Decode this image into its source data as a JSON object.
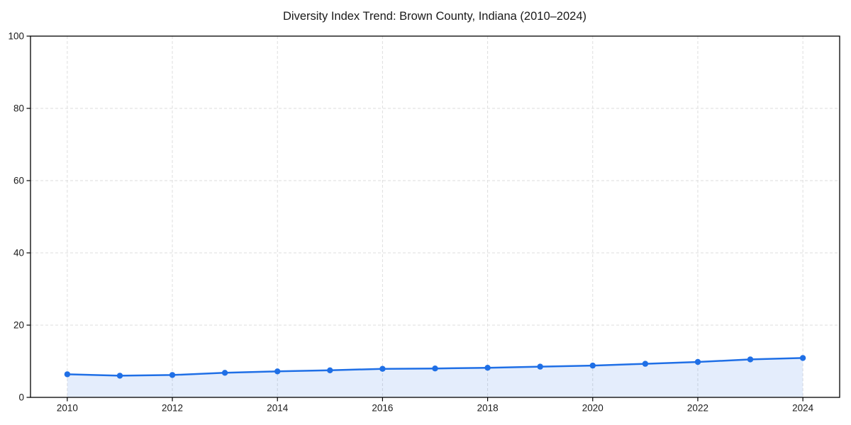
{
  "chart_data": {
    "type": "line",
    "title": "Diversity Index Trend: Brown County, Indiana (2010–2024)",
    "x": [
      2010,
      2011,
      2012,
      2013,
      2014,
      2015,
      2016,
      2017,
      2018,
      2019,
      2020,
      2021,
      2022,
      2023,
      2024
    ],
    "series": [
      {
        "name": "Diversity Index",
        "values": [
          6.4,
          6.0,
          6.2,
          6.8,
          7.2,
          7.5,
          7.9,
          8.0,
          8.2,
          8.5,
          8.8,
          9.3,
          9.8,
          10.5,
          10.9
        ]
      }
    ],
    "xlabel": "",
    "ylabel": "",
    "xlim": [
      2009.3,
      2024.7
    ],
    "ylim": [
      0,
      100
    ],
    "xticks": [
      2010,
      2012,
      2014,
      2016,
      2018,
      2020,
      2022,
      2024
    ],
    "yticks": [
      0,
      20,
      40,
      60,
      80,
      100
    ],
    "grid": true,
    "grid_style": "dashed",
    "legend": false,
    "area_fill": true,
    "marker": "circle",
    "colors": {
      "line": "#1f6fe6",
      "marker": "#1f6fe6",
      "area": "#1f6fe6",
      "area_opacity": 0.12,
      "grid": "#dedede",
      "spine": "#000000",
      "text": "#1a1a1a",
      "background": "#ffffff"
    }
  }
}
